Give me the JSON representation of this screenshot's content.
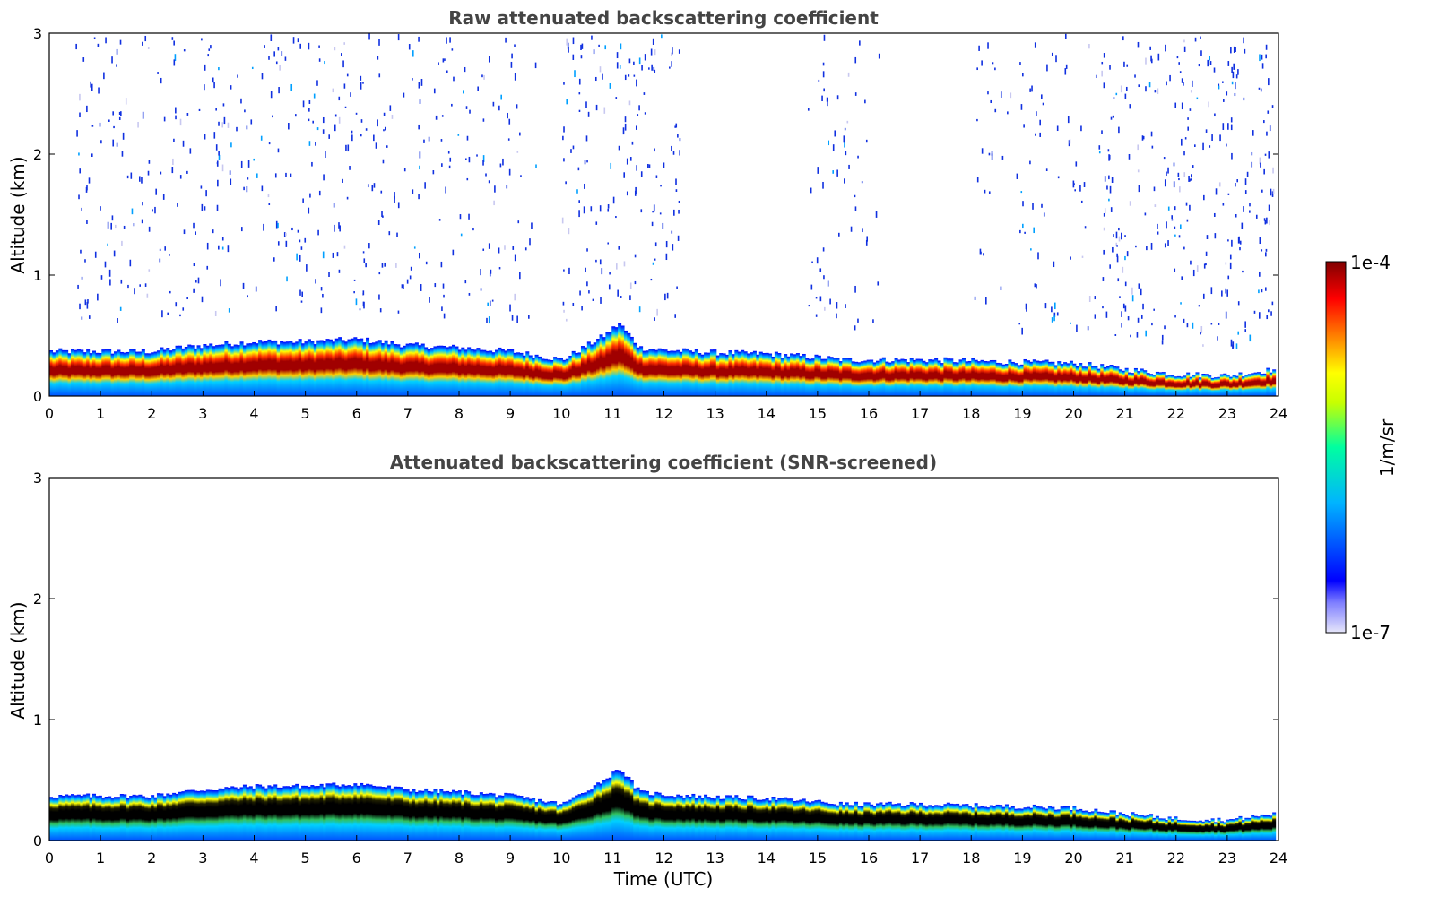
{
  "chart_data": [
    {
      "type": "heatmap",
      "title": "Raw attenuated backscattering coefficient",
      "xlabel": "",
      "ylabel": "Altitude (km)",
      "xlim": [
        0,
        24
      ],
      "ylim": [
        0,
        3
      ],
      "xticks": [
        "0",
        "1",
        "2",
        "3",
        "4",
        "5",
        "6",
        "7",
        "8",
        "9",
        "10",
        "11",
        "12",
        "13",
        "14",
        "15",
        "16",
        "17",
        "18",
        "19",
        "20",
        "21",
        "22",
        "23",
        "24"
      ],
      "yticks": [
        "0",
        "1",
        "2",
        "3"
      ],
      "layer_top_km": [
        {
          "t": 0,
          "z": 0.37
        },
        {
          "t": 1,
          "z": 0.37
        },
        {
          "t": 2,
          "z": 0.37
        },
        {
          "t": 2.5,
          "z": 0.4
        },
        {
          "t": 3,
          "z": 0.42
        },
        {
          "t": 4,
          "z": 0.45
        },
        {
          "t": 5,
          "z": 0.45
        },
        {
          "t": 6,
          "z": 0.47
        },
        {
          "t": 7,
          "z": 0.42
        },
        {
          "t": 8,
          "z": 0.4
        },
        {
          "t": 9,
          "z": 0.37
        },
        {
          "t": 10,
          "z": 0.3
        },
        {
          "t": 10.8,
          "z": 0.5
        },
        {
          "t": 11.1,
          "z": 0.6
        },
        {
          "t": 11.5,
          "z": 0.4
        },
        {
          "t": 12,
          "z": 0.38
        },
        {
          "t": 13,
          "z": 0.36
        },
        {
          "t": 14,
          "z": 0.35
        },
        {
          "t": 15,
          "z": 0.32
        },
        {
          "t": 15.5,
          "z": 0.3
        },
        {
          "t": 16,
          "z": 0.3
        },
        {
          "t": 17,
          "z": 0.3
        },
        {
          "t": 18,
          "z": 0.29
        },
        {
          "t": 19,
          "z": 0.28
        },
        {
          "t": 20,
          "z": 0.27
        },
        {
          "t": 21,
          "z": 0.22
        },
        {
          "t": 22,
          "z": 0.18
        },
        {
          "t": 23,
          "z": 0.17
        },
        {
          "t": 23.9,
          "z": 0.22
        }
      ],
      "layer_core_km": [
        {
          "t": 0,
          "z": 0.28
        },
        {
          "t": 1,
          "z": 0.29
        },
        {
          "t": 2,
          "z": 0.29
        },
        {
          "t": 3,
          "z": 0.32
        },
        {
          "t": 4,
          "z": 0.35
        },
        {
          "t": 5,
          "z": 0.33
        },
        {
          "t": 6,
          "z": 0.36
        },
        {
          "t": 7,
          "z": 0.33
        },
        {
          "t": 8,
          "z": 0.3
        },
        {
          "t": 9,
          "z": 0.27
        },
        {
          "t": 10,
          "z": 0.2
        },
        {
          "t": 10.8,
          "z": 0.38
        },
        {
          "t": 11.1,
          "z": 0.42
        },
        {
          "t": 11.5,
          "z": 0.3
        },
        {
          "t": 12,
          "z": 0.28
        },
        {
          "t": 13,
          "z": 0.27
        },
        {
          "t": 14,
          "z": 0.24
        },
        {
          "t": 15,
          "z": 0.22
        },
        {
          "t": 16,
          "z": 0.2
        },
        {
          "t": 17,
          "z": 0.2
        },
        {
          "t": 18,
          "z": 0.2
        },
        {
          "t": 19,
          "z": 0.19
        },
        {
          "t": 20,
          "z": 0.18
        },
        {
          "t": 21,
          "z": 0.11
        },
        {
          "t": 22,
          "z": 0.06
        },
        {
          "t": 23,
          "z": 0.06
        },
        {
          "t": 23.9,
          "z": 0.08
        }
      ]
    },
    {
      "type": "heatmap",
      "title": "Attenuated backscattering coefficient (SNR-screened)",
      "xlabel": "Time (UTC)",
      "ylabel": "Altitude (km)",
      "xlim": [
        0,
        24
      ],
      "ylim": [
        0,
        3
      ],
      "xticks": [
        "0",
        "1",
        "2",
        "3",
        "4",
        "5",
        "6",
        "7",
        "8",
        "9",
        "10",
        "11",
        "12",
        "13",
        "14",
        "15",
        "16",
        "17",
        "18",
        "19",
        "20",
        "21",
        "22",
        "23",
        "24"
      ],
      "yticks": [
        "0",
        "1",
        "2",
        "3"
      ],
      "saturated_color": "#000000"
    }
  ],
  "colorbar": {
    "label": "1/m/sr",
    "max_label": "1e-4",
    "min_label": "1e-7",
    "scale": "log",
    "colors": [
      "#e6e6fa",
      "#0000ff",
      "#00c8ff",
      "#00ffa0",
      "#ffff00",
      "#ff8000",
      "#ff0000",
      "#800000"
    ]
  }
}
